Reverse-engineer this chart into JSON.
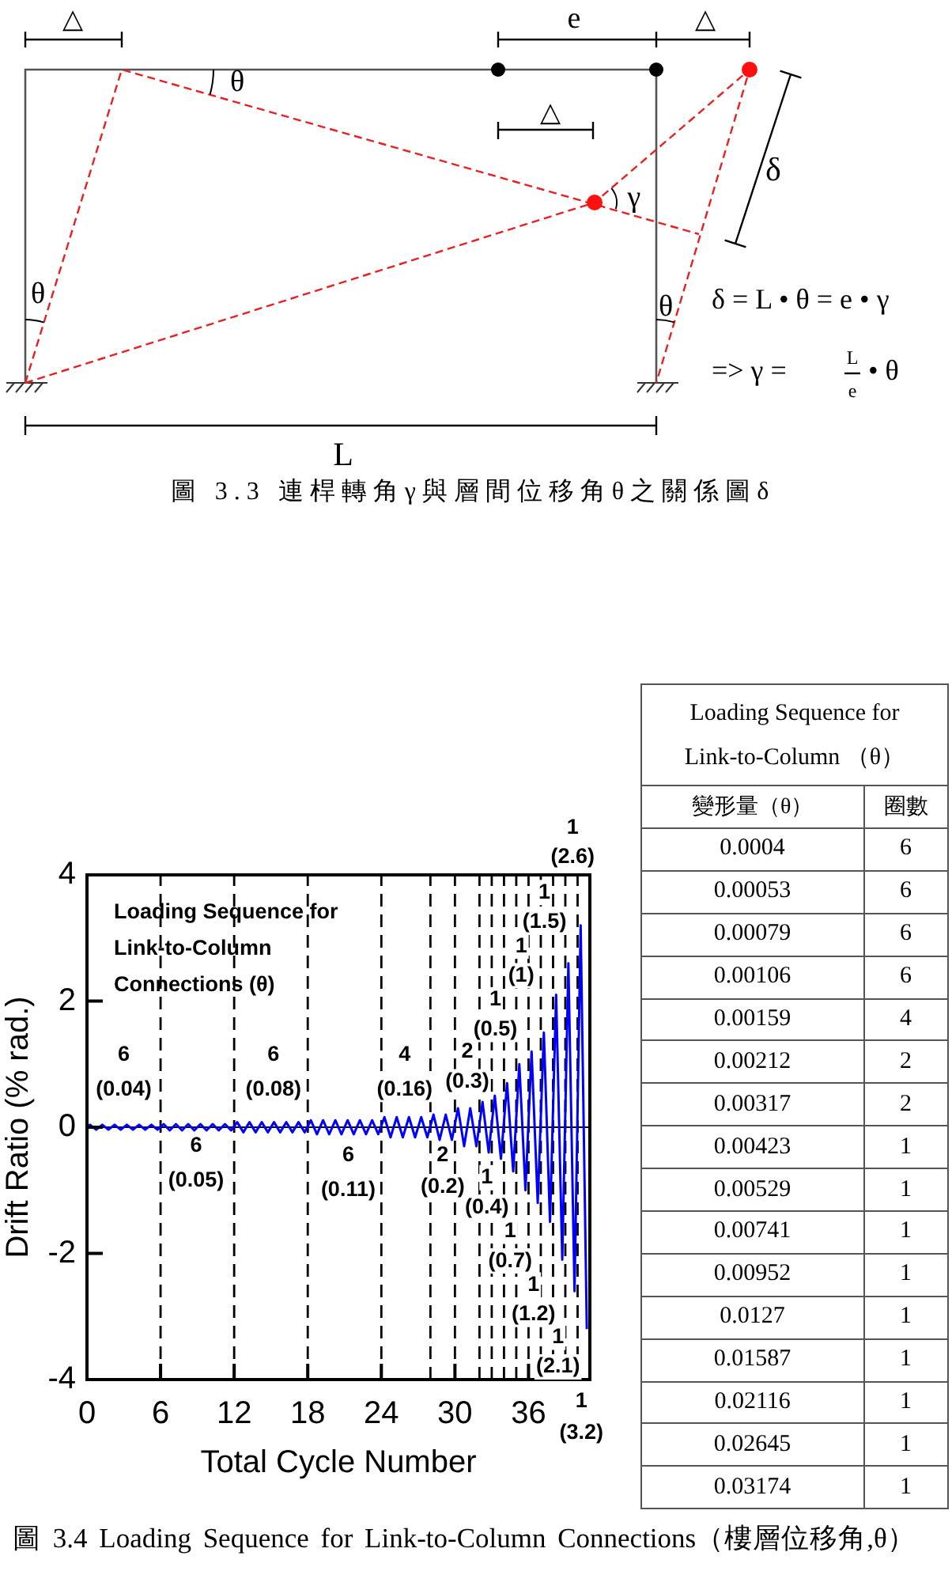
{
  "chart_data": [
    {
      "type": "other",
      "annotations": [
        "△",
        "e",
        "△",
        "θ",
        "△",
        "γ",
        "δ",
        "θ",
        "θ",
        "δ = L • θ = e • γ",
        "=> γ =",
        "L",
        "e",
        "• θ",
        "L",
        "圖 3.3 連桿轉角γ與層間位移角θ之關係圖δ"
      ]
    },
    {
      "type": "line",
      "title": "Loading Sequence for Link-to-Column Connections (θ)",
      "xlabel": "Total Cycle Number",
      "ylabel": "Drift Ratio (% rad.)",
      "color": "#0000ff",
      "x": [
        0,
        0.25,
        0.75,
        1.25,
        1.75,
        2.25,
        2.75,
        3.25,
        3.75,
        4.25,
        4.75,
        5.25,
        5.75,
        6.25,
        6.75,
        7.25,
        7.75,
        8.25,
        8.75,
        9.25,
        9.75,
        10.25,
        10.75,
        11.25,
        11.75,
        12.25,
        12.75,
        13.25,
        13.75,
        14.25,
        14.75,
        15.25,
        15.75,
        16.25,
        16.75,
        17.25,
        17.75,
        18.25,
        18.75,
        19.25,
        19.75,
        20.25,
        20.75,
        21.25,
        21.75,
        22.25,
        22.75,
        23.25,
        23.75,
        24.25,
        24.75,
        25.25,
        25.75,
        26.25,
        26.75,
        27.25,
        27.75,
        28.25,
        28.75,
        29.25,
        29.75,
        30.25,
        30.75,
        31.25,
        31.75,
        32.25,
        32.75,
        33.25,
        33.75,
        34.25,
        34.75,
        35.25,
        35.75,
        36.25,
        36.75,
        37.25,
        37.75,
        38.25,
        38.75,
        39.25,
        39.75,
        40.25,
        40.75
      ],
      "values": [
        0,
        0.04,
        -0.04,
        0.04,
        -0.04,
        0.04,
        -0.04,
        0.04,
        -0.04,
        0.04,
        -0.04,
        0.04,
        -0.04,
        0.05,
        -0.05,
        0.05,
        -0.05,
        0.05,
        -0.05,
        0.05,
        -0.05,
        0.05,
        -0.05,
        0.05,
        -0.05,
        0.08,
        -0.08,
        0.08,
        -0.08,
        0.08,
        -0.08,
        0.08,
        -0.08,
        0.08,
        -0.08,
        0.08,
        -0.08,
        0.11,
        -0.11,
        0.11,
        -0.11,
        0.11,
        -0.11,
        0.11,
        -0.11,
        0.11,
        -0.11,
        0.11,
        -0.11,
        0.16,
        -0.16,
        0.16,
        -0.16,
        0.16,
        -0.16,
        0.16,
        -0.16,
        0.2,
        -0.2,
        0.2,
        -0.2,
        0.3,
        -0.3,
        0.3,
        -0.3,
        0.4,
        -0.4,
        0.5,
        -0.5,
        0.7,
        -0.7,
        1,
        -1,
        1.2,
        -1.2,
        1.5,
        -1.5,
        2.1,
        -2.1,
        2.6,
        -2.6,
        3.2,
        -3.2
      ],
      "xlim": [
        0,
        41
      ],
      "ylim": [
        -4,
        4
      ],
      "xticks": [
        0,
        6,
        12,
        18,
        24,
        30,
        36
      ],
      "yticks": [
        -4,
        -2,
        0,
        2,
        4
      ],
      "ref_lines": [
        {
          "axis": "x",
          "value": 6,
          "color": "#000000",
          "line_style": "dashed"
        },
        {
          "axis": "x",
          "value": 12,
          "color": "#000000",
          "line_style": "dashed"
        },
        {
          "axis": "x",
          "value": 18,
          "color": "#000000",
          "line_style": "dashed"
        },
        {
          "axis": "x",
          "value": 24,
          "color": "#000000",
          "line_style": "dashed"
        },
        {
          "axis": "x",
          "value": 28,
          "color": "#000000",
          "line_style": "dashed"
        },
        {
          "axis": "x",
          "value": 30,
          "color": "#000000",
          "line_style": "dashed"
        },
        {
          "axis": "x",
          "value": 32,
          "color": "#000000",
          "line_style": "dashed"
        },
        {
          "axis": "x",
          "value": 33,
          "color": "#000000",
          "line_style": "dashed"
        },
        {
          "axis": "x",
          "value": 34,
          "color": "#000000",
          "line_style": "dashed"
        },
        {
          "axis": "x",
          "value": 35,
          "color": "#000000",
          "line_style": "dashed"
        },
        {
          "axis": "x",
          "value": 36,
          "color": "#000000",
          "line_style": "dashed"
        },
        {
          "axis": "x",
          "value": 37,
          "color": "#000000",
          "line_style": "dashed"
        },
        {
          "axis": "x",
          "value": 38,
          "color": "#000000",
          "line_style": "dashed"
        },
        {
          "axis": "x",
          "value": 39,
          "color": "#000000",
          "line_style": "dashed"
        },
        {
          "axis": "x",
          "value": 40,
          "color": "#000000",
          "line_style": "dashed"
        },
        {
          "axis": "y",
          "value": 0,
          "color": "#000000",
          "line_style": "solid"
        }
      ],
      "annotations": [
        "6",
        "(0.04)",
        "6",
        "(0.05)",
        "6",
        "(0.08)",
        "6",
        "(0.11)",
        "4",
        "(0.16)",
        "2",
        "(0.2)",
        "2",
        "(0.3)",
        "1",
        "(0.4)",
        "1",
        "(0.5)",
        "1",
        "(0.7)",
        "1",
        "(1)",
        "1",
        "(1.2)",
        "1",
        "(1.5)",
        "1",
        "(2.1)",
        "1",
        "(2.6)",
        "1",
        "(3.2)",
        "圖 3.4 Loading Sequence for Link-to-Column Connections（樓層位移角,θ）"
      ]
    },
    {
      "type": "other",
      "title": "Loading Sequence for Link-to-Column （θ）",
      "annotations": [
        "變形量（θ）",
        "圈數",
        "0.0004",
        "6",
        "0.00053",
        "6",
        "0.00079",
        "6",
        "0.00106",
        "6",
        "0.00159",
        "4",
        "0.00212",
        "2",
        "0.00317",
        "2",
        "0.00423",
        "1",
        "0.00529",
        "1",
        "0.00741",
        "1",
        "0.00952",
        "1",
        "0.0127",
        "1",
        "0.01587",
        "1",
        "0.02116",
        "1",
        "0.02645",
        "1",
        "0.03174",
        "1"
      ]
    }
  ]
}
